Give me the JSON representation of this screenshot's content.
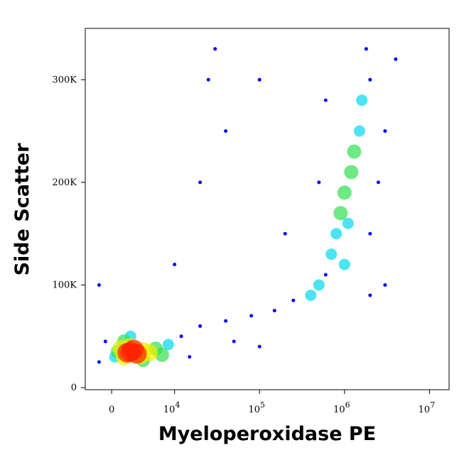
{
  "chart_data": {
    "type": "scatter",
    "x_label": "Myeloperoxidase PE",
    "y_label": "Side Scatter",
    "xscale": "biexponential",
    "xlim": [
      -4200,
      17000000
    ],
    "xticks": [
      0,
      {
        "value": 10000,
        "label": "10",
        "exponent": "4"
      },
      {
        "value": 100000,
        "label": "10",
        "exponent": "5"
      },
      {
        "value": 1000000,
        "label": "10",
        "exponent": "6"
      },
      {
        "value": 10000000,
        "label": "10",
        "exponent": "7"
      }
    ],
    "ylim": [
      -2000,
      350000
    ],
    "yticks": [
      0,
      {
        "value": 100000,
        "label": "100K"
      },
      {
        "value": 200000,
        "label": "200K"
      },
      {
        "value": 300000,
        "label": "300K"
      }
    ],
    "series": [
      {
        "color": "#0000ff",
        "x": [
          -2000,
          -1000,
          12000,
          20000,
          40000,
          80000,
          150000,
          250000,
          600000,
          2000000,
          2500000,
          2000000,
          3000000,
          500000,
          600000,
          1800000,
          30000,
          25000,
          40000,
          20000,
          10000,
          -2000,
          200000,
          3000000,
          100000,
          15000,
          50000,
          2000000,
          4000000,
          100000
        ],
        "y": [
          25000,
          45000,
          50000,
          60000,
          65000,
          70000,
          75000,
          85000,
          110000,
          300000,
          200000,
          150000,
          250000,
          200000,
          280000,
          330000,
          330000,
          300000,
          250000,
          200000,
          120000,
          100000,
          150000,
          100000,
          40000,
          30000,
          45000,
          90000,
          320000,
          300000
        ]
      },
      {
        "color": "#00d8f0",
        "x": [
          500,
          9000,
          3000,
          1500000,
          800000,
          700000,
          500000,
          1600000,
          1100000,
          400000,
          1000000
        ],
        "y": [
          30000,
          42000,
          50000,
          250000,
          150000,
          130000,
          100000,
          280000,
          160000,
          90000,
          120000
        ]
      },
      {
        "color": "#30e050",
        "x": [
          1000,
          7000,
          2000,
          5000,
          8000,
          1000000,
          1200000,
          1300000,
          900000
        ],
        "y": [
          35000,
          38000,
          45000,
          27000,
          32000,
          190000,
          210000,
          230000,
          170000
        ]
      },
      {
        "color": "#f0f000",
        "x": [
          2000,
          5000,
          3000,
          4500,
          1500,
          6000
        ],
        "y": [
          30000,
          36000,
          40000,
          31000,
          38000,
          34000
        ]
      },
      {
        "color": "#ff2000",
        "x": [
          3000,
          4000,
          3500,
          2500
        ],
        "y": [
          35000,
          33000,
          37000,
          34000
        ]
      }
    ]
  }
}
